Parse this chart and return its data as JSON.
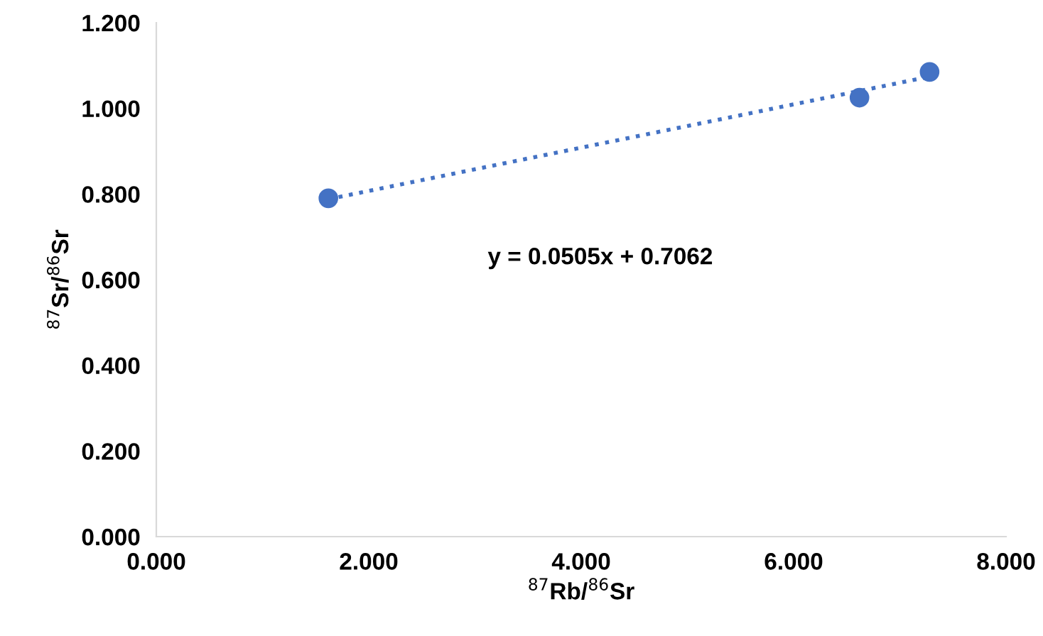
{
  "chart_data": {
    "type": "scatter",
    "xlabel": "$^{87}$Rb/$^{86}$Sr",
    "ylabel": "$^{87}$Sr/$^{86}$Sr",
    "annotations": [
      "y = 0.0505x + 0.7062"
    ],
    "series": [
      {
        "color": "#4472c4",
        "x": [
          1.62,
          6.62,
          7.28
        ],
        "values": [
          0.79,
          1.025,
          1.085
        ],
        "marker": "circle"
      },
      {
        "type": "line",
        "color": "#4472c4",
        "x": [
          1.62,
          7.28
        ],
        "values": [
          0.788,
          1.074
        ],
        "line_style": "dotted",
        "marker": "none"
      }
    ],
    "xlim": [
      0,
      8
    ],
    "ylim": [
      0,
      1.2
    ],
    "xticks": [
      {
        "value": 0,
        "label": "0.000"
      },
      {
        "value": 2,
        "label": "2.000"
      },
      {
        "value": 4,
        "label": "4.000"
      },
      {
        "value": 6,
        "label": "6.000"
      },
      {
        "value": 8,
        "label": "8.000"
      }
    ],
    "yticks": [
      {
        "value": 0,
        "label": "0.000"
      },
      {
        "value": 0.2,
        "label": "0.200"
      },
      {
        "value": 0.4,
        "label": "0.400"
      },
      {
        "value": 0.6,
        "label": "0.600"
      },
      {
        "value": 0.8,
        "label": "0.800"
      },
      {
        "value": 1.0,
        "label": "1.000"
      },
      {
        "value": 1.2,
        "label": "1.200"
      }
    ],
    "grid": false,
    "legend": false
  }
}
